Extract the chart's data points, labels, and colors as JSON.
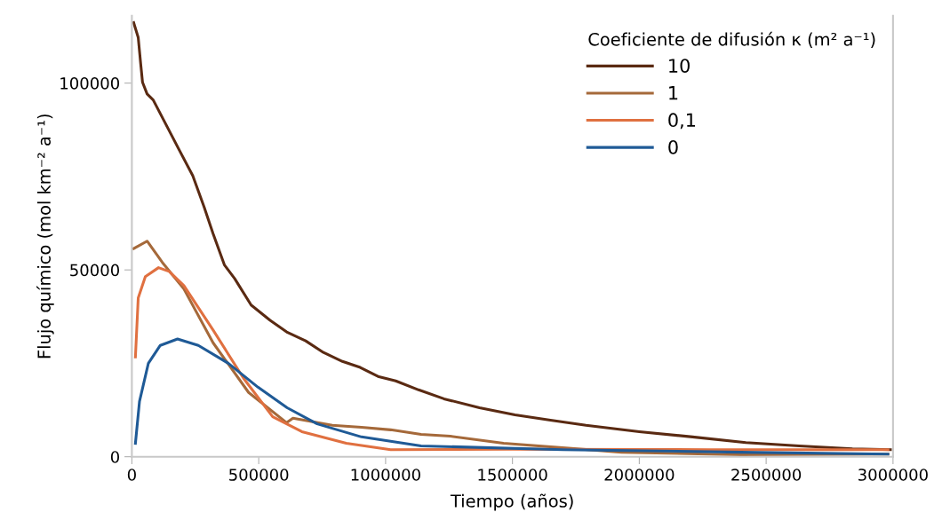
{
  "chart_data": {
    "type": "line",
    "xlabel": "Tiempo (años)",
    "ylabel": "Flujo químico (mol km⁻² a⁻¹)",
    "legend_title": "Coeficiente de difusión κ (m² a⁻¹)",
    "legend": "top right",
    "grid": false,
    "marker": "none",
    "line_style": "solid",
    "xlim": [
      0,
      3000000
    ],
    "ylim": [
      0,
      118000
    ],
    "xticks": [
      0,
      500000,
      1000000,
      1500000,
      2000000,
      2500000,
      3000000
    ],
    "yticks": [
      0,
      50000,
      100000
    ],
    "series": [
      {
        "name": "10",
        "color": "#5a2a12",
        "x": [
          7000,
          25000,
          35000,
          42000,
          60000,
          84000,
          130000,
          185000,
          240000,
          285000,
          320000,
          365000,
          405000,
          470000,
          545000,
          610000,
          685000,
          755000,
          830000,
          900000,
          970000,
          1040000,
          1130000,
          1230000,
          1370000,
          1510000,
          1650000,
          1790000,
          2000000,
          2210000,
          2420000,
          2630000,
          2840000,
          2990000
        ],
        "values": [
          116200,
          112200,
          105000,
          100200,
          97100,
          95500,
          89500,
          82300,
          75200,
          66800,
          59700,
          51300,
          47700,
          40600,
          36500,
          33400,
          31000,
          27900,
          25500,
          23900,
          21500,
          20300,
          17900,
          15500,
          13100,
          11200,
          9800,
          8400,
          6700,
          5300,
          3800,
          2900,
          2100,
          1900
        ]
      },
      {
        "name": "1",
        "color": "#a5693a",
        "x": [
          7000,
          60000,
          120000,
          205000,
          320000,
          460000,
          610000,
          635000,
          790000,
          905000,
          1020000,
          1140000,
          1255000,
          1465000,
          1930000,
          2400000,
          2980000
        ],
        "values": [
          55700,
          57700,
          52000,
          44900,
          30500,
          17200,
          9100,
          10300,
          8400,
          7900,
          7200,
          6000,
          5500,
          3600,
          1200,
          500,
          700
        ]
      },
      {
        "name": "0,1",
        "color": "#e07040",
        "x": [
          14000,
          25000,
          53000,
          105000,
          147000,
          205000,
          320000,
          440000,
          555000,
          670000,
          845000,
          1020000,
          1500000,
          2280000,
          2980000
        ],
        "values": [
          26700,
          42500,
          48200,
          50600,
          49600,
          45800,
          33900,
          21000,
          10700,
          6700,
          3600,
          1900,
          2000,
          1900,
          1900
        ]
      },
      {
        "name": "0",
        "color": "#1f5a96",
        "x": [
          14000,
          30000,
          65000,
          112000,
          180000,
          262000,
          380000,
          497000,
          612000,
          730000,
          905000,
          1140000,
          1700000,
          2400000,
          2980000
        ],
        "values": [
          3600,
          14800,
          25000,
          29800,
          31500,
          29800,
          25000,
          18600,
          13100,
          8800,
          5300,
          2900,
          1900,
          1200,
          700
        ]
      }
    ]
  }
}
